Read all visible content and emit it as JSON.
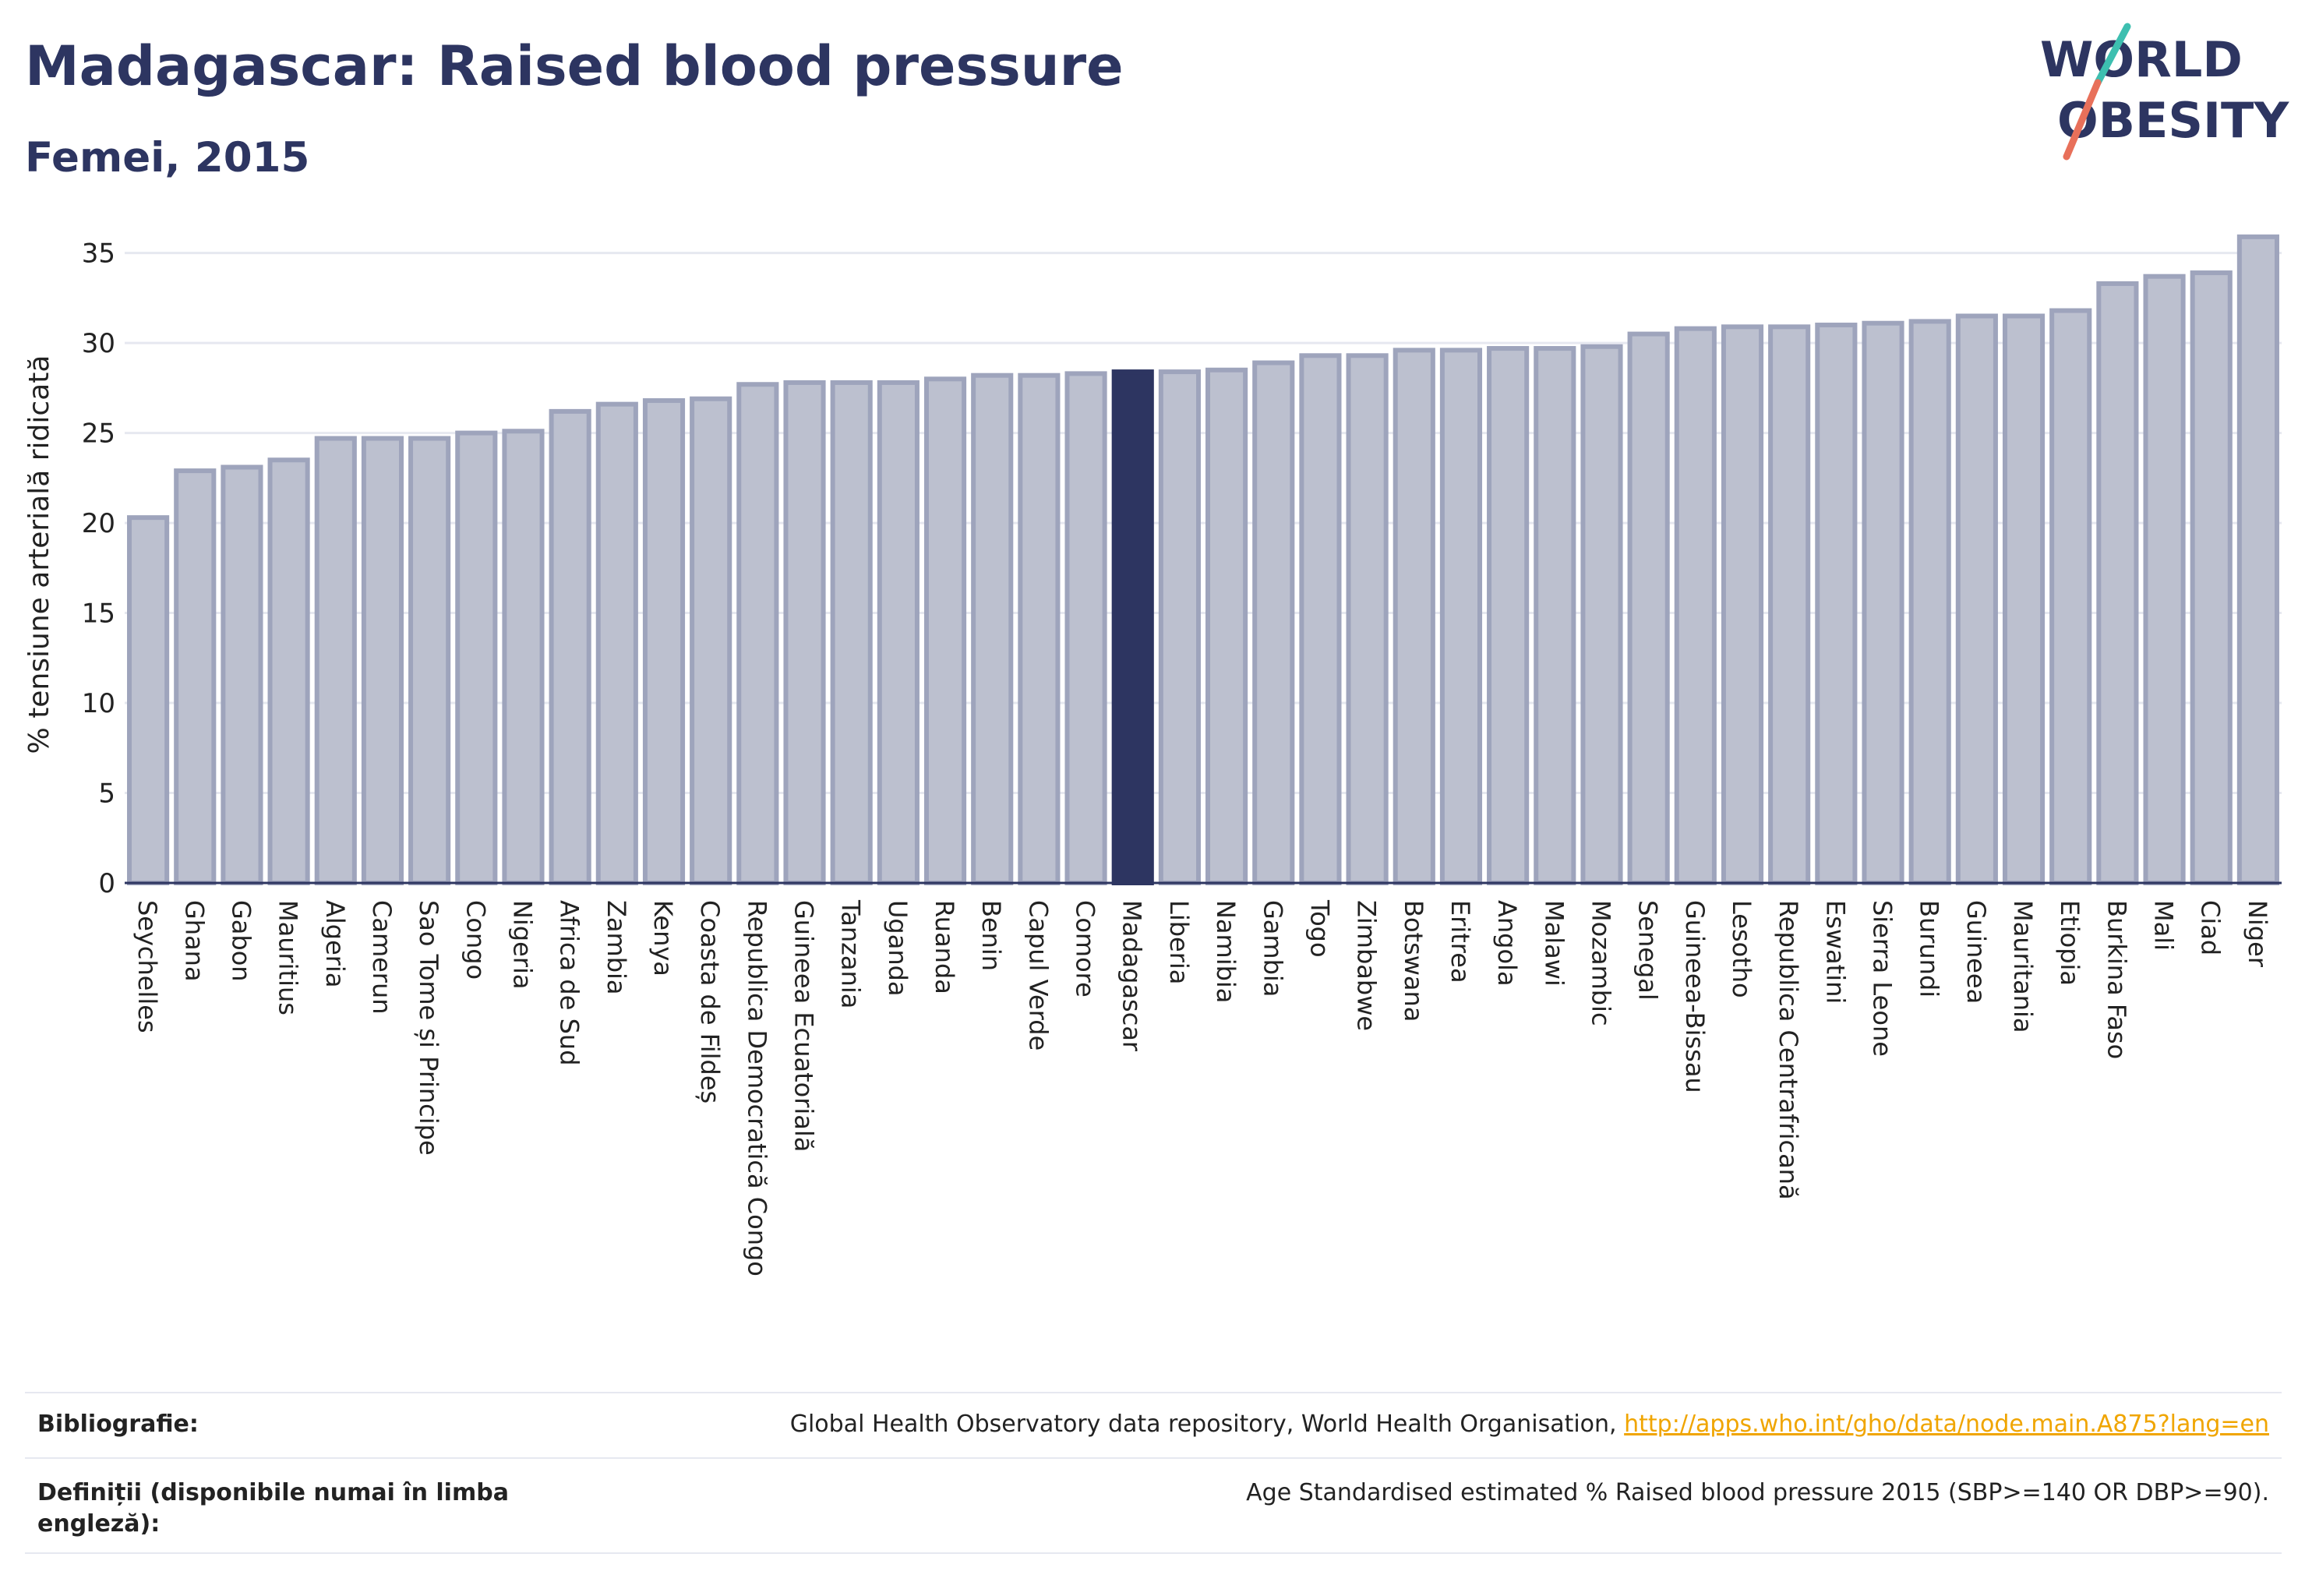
{
  "title": "Madagascar: Raised blood pressure",
  "subtitle": "Femei, 2015",
  "logo": {
    "line1": "WORLD",
    "line2": "OBESITY"
  },
  "chart_data": {
    "type": "bar",
    "ylabel": "% tensiune arterială ridicată",
    "xlabel": "",
    "ylim": [
      0,
      36.5
    ],
    "yticks": [
      0,
      5,
      10,
      15,
      20,
      25,
      30,
      35
    ],
    "grid": true,
    "highlight": "Madagascar",
    "colors": {
      "bar": "#bcc0cf",
      "bar_edge": "#9ea4bc",
      "highlight": "#2d3561",
      "grid": "#e6e8f0",
      "axis": "#2d3561"
    },
    "categories": [
      "Seychelles",
      "Ghana",
      "Gabon",
      "Mauritius",
      "Algeria",
      "Camerun",
      "Sao Tome și Principe",
      "Congo",
      "Nigeria",
      "Africa de Sud",
      "Zambia",
      "Kenya",
      "Coasta de Fildeș",
      "Republica Democratică Congo",
      "Guineea Ecuatorială",
      "Tanzania",
      "Uganda",
      "Ruanda",
      "Benin",
      "Capul Verde",
      "Comore",
      "Madagascar",
      "Liberia",
      "Namibia",
      "Gambia",
      "Togo",
      "Zimbabwe",
      "Botswana",
      "Eritrea",
      "Angola",
      "Malawi",
      "Mozambic",
      "Senegal",
      "Guineea-Bissau",
      "Lesotho",
      "Republica Centrafricană",
      "Eswatini",
      "Sierra Leone",
      "Burundi",
      "Guineea",
      "Mauritania",
      "Etiopia",
      "Burkina Faso",
      "Mali",
      "Ciad",
      "Niger"
    ],
    "values": [
      20.3,
      22.9,
      23.1,
      23.5,
      24.7,
      24.7,
      24.7,
      25.0,
      25.1,
      26.2,
      26.6,
      26.8,
      26.9,
      27.7,
      27.8,
      27.8,
      27.8,
      28.0,
      28.2,
      28.2,
      28.3,
      28.4,
      28.4,
      28.5,
      28.9,
      29.3,
      29.3,
      29.6,
      29.6,
      29.7,
      29.7,
      29.8,
      30.5,
      30.8,
      30.9,
      30.9,
      31.0,
      31.1,
      31.2,
      31.5,
      31.5,
      31.8,
      33.3,
      33.7,
      33.9,
      35.9
    ]
  },
  "footer": {
    "bibliography_label": "Bibliografie:",
    "bibliography_text": "Global Health Observatory data repository, World Health Organisation,",
    "bibliography_link": "http://apps.who.int/gho/data/node.main.A875?lang=en",
    "definitions_label_1": "Definiții (disponibile numai în limba",
    "definitions_label_2": "engleză):",
    "definitions_text": "Age Standardised estimated % Raised blood pressure 2015 (SBP>=140 OR DBP>=90)."
  }
}
